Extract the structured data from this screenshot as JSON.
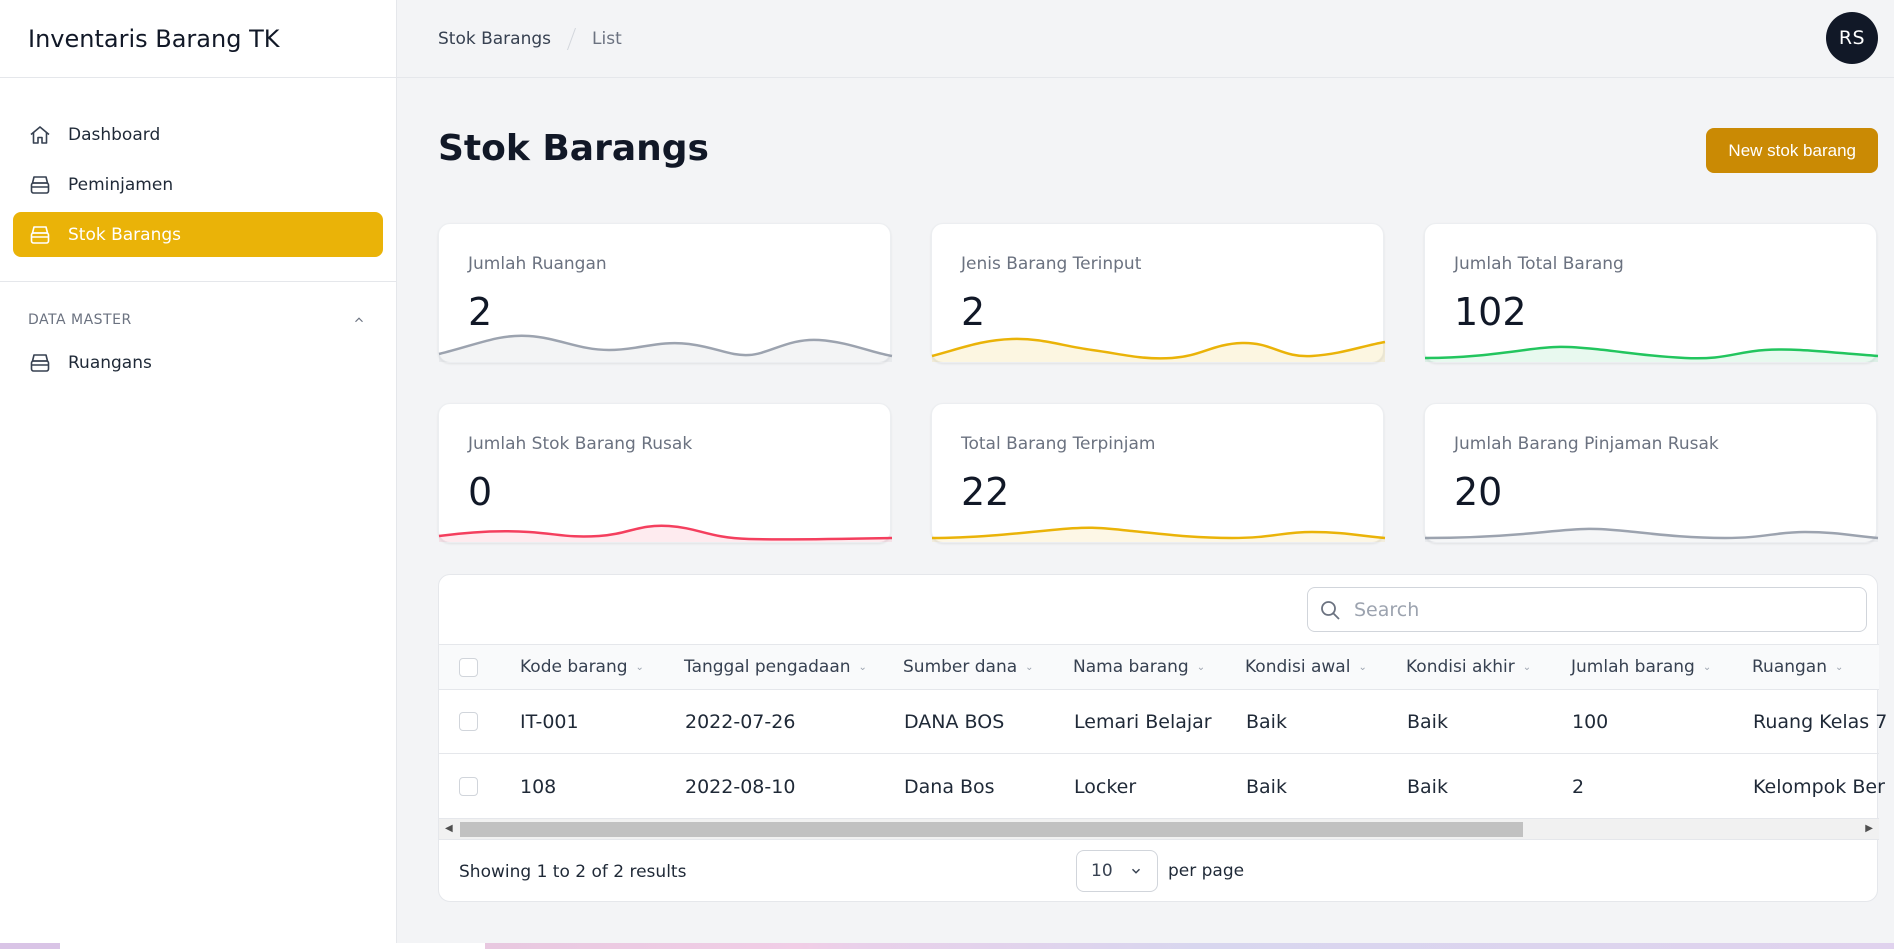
{
  "app": {
    "title": "Inventaris Barang TK"
  },
  "sidebar": {
    "items": [
      {
        "label": "Dashboard",
        "icon": "home-icon"
      },
      {
        "label": "Peminjamen",
        "icon": "archive-icon"
      },
      {
        "label": "Stok Barangs",
        "icon": "archive-icon",
        "active": true
      }
    ],
    "group": {
      "title": "DATA MASTER",
      "items": [
        {
          "label": "Ruangans",
          "icon": "archive-icon"
        }
      ]
    }
  },
  "topbar": {
    "breadcrumb": [
      "Stok Barangs",
      "List"
    ],
    "avatar": "RS"
  },
  "page": {
    "title": "Stok Barangs",
    "new_button": "New stok barang"
  },
  "stats": [
    {
      "label": "Jumlah Ruangan",
      "value": "2",
      "color": "#9ca3af"
    },
    {
      "label": "Jenis Barang Terinput",
      "value": "2",
      "color": "#eab308"
    },
    {
      "label": "Jumlah Total Barang",
      "value": "102",
      "color": "#22c55e"
    },
    {
      "label": "Jumlah Stok Barang Rusak",
      "value": "0",
      "color": "#f43f5e"
    },
    {
      "label": "Total Barang Terpinjam",
      "value": "22",
      "color": "#eab308"
    },
    {
      "label": "Jumlah Barang Pinjaman Rusak",
      "value": "20",
      "color": "#9ca3af"
    }
  ],
  "table": {
    "search_placeholder": "Search",
    "columns": [
      "Kode barang",
      "Tanggal pengadaan",
      "Sumber dana",
      "Nama barang",
      "Kondisi awal",
      "Kondisi akhir",
      "Jumlah barang",
      "Ruangan"
    ],
    "rows": [
      [
        "IT-001",
        "2022-07-26",
        "DANA BOS",
        "Lemari Belajar",
        "Baik",
        "Baik",
        "100",
        "Ruang Kelas 7"
      ],
      [
        "108",
        "2022-08-10",
        "Dana Bos",
        "Locker",
        "Baik",
        "Baik",
        "2",
        "Kelompok Ber"
      ]
    ],
    "showing": "Showing 1 to 2 of 2 results",
    "per_page_value": "10",
    "per_page_label": "per page"
  },
  "colors": {
    "accent": "#eab308",
    "primary_button": "#ca8a04"
  }
}
